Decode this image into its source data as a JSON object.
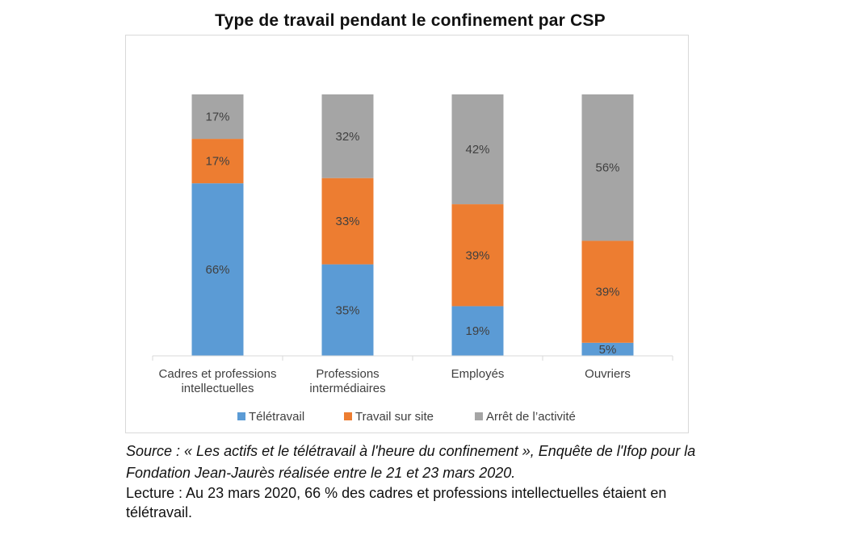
{
  "chart_data": {
    "type": "bar",
    "stacked": true,
    "title": "Type de travail pendant le confinement par CSP",
    "categories": [
      [
        "Cadres et professions",
        "intellectuelles"
      ],
      [
        "Professions",
        "intermédiaires"
      ],
      [
        "Employés"
      ],
      [
        "Ouvriers"
      ]
    ],
    "series": [
      {
        "name": "Télétravail",
        "color": "#5b9bd5",
        "values": [
          66,
          35,
          19,
          5
        ]
      },
      {
        "name": "Travail sur site",
        "color": "#ed7d31",
        "values": [
          17,
          33,
          39,
          39
        ]
      },
      {
        "name": "Arrêt de l’activité",
        "color": "#a5a5a5",
        "values": [
          17,
          32,
          42,
          56
        ]
      }
    ],
    "value_suffix": "%",
    "ylim": [
      0,
      100
    ],
    "grid": false,
    "legend_position": "bottom"
  },
  "source_text": "Source : « Les actifs et le télétravail à l'heure du confinement », Enquête de l'Ifop pour la Fondation Jean-Jaurès réalisée entre le 21 et 23 mars 2020.",
  "reading_text": "Lecture : Au 23 mars 2020, 66 % des cadres et professions intellectuelles étaient en télétravail."
}
